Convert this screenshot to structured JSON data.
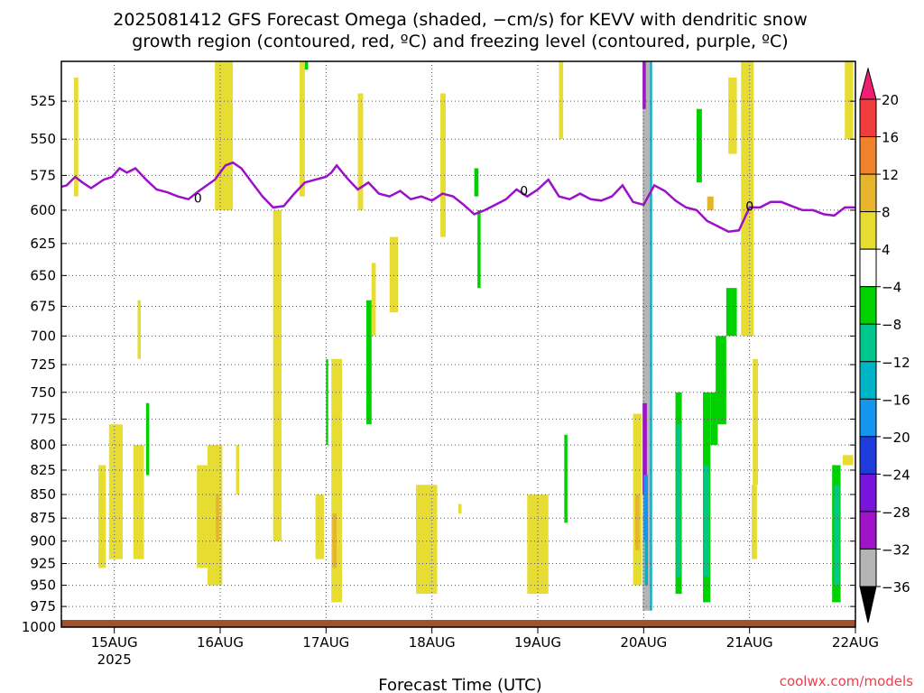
{
  "chart_data": {
    "type": "heatmap",
    "title_lines": [
      "2025081412 GFS Forecast Omega (shaded, −cm/s) for KEVV with dendritic snow",
      "growth region (contoured, red, ºC) and freezing level (contoured, purple, ºC)"
    ],
    "xlabel": "Forecast Time (UTC)",
    "x_ticks": [
      {
        "t": 0,
        "label": "15AUG",
        "sub": "2025"
      },
      {
        "t": 1,
        "label": "16AUG",
        "sub": ""
      },
      {
        "t": 2,
        "label": "17AUG",
        "sub": ""
      },
      {
        "t": 3,
        "label": "18AUG",
        "sub": ""
      },
      {
        "t": 4,
        "label": "19AUG",
        "sub": ""
      },
      {
        "t": 5,
        "label": "20AUG",
        "sub": ""
      },
      {
        "t": 6,
        "label": "21AUG",
        "sub": ""
      },
      {
        "t": 7,
        "label": "22AUG",
        "sub": ""
      }
    ],
    "xlim_days_from_15aug": [
      -0.5,
      7
    ],
    "y_axis": {
      "units": "hPa",
      "reversed": true,
      "range": [
        500,
        1000
      ],
      "ticks": [
        525,
        550,
        575,
        600,
        625,
        650,
        675,
        700,
        725,
        750,
        775,
        800,
        825,
        850,
        875,
        900,
        925,
        950,
        975,
        1000
      ]
    },
    "grid": true,
    "colorbar": {
      "levels": [
        20,
        16,
        12,
        8,
        4,
        -4,
        -8,
        -12,
        -16,
        -20,
        -24,
        -28,
        -32,
        -36
      ],
      "colors": [
        "#f01e6e",
        "#f03c3c",
        "#f0822d",
        "#e6b42d",
        "#e6dc32",
        "#ffffff",
        "#00d200",
        "#00c88c",
        "#00b4c8",
        "#1496f0",
        "#1e3cdc",
        "#7814dc",
        "#a014c8",
        "#b4b4b4",
        "#000000"
      ]
    },
    "freezing_level": {
      "label": "0",
      "x_days": [
        -0.5,
        -0.45,
        -0.37,
        -0.3,
        -0.22,
        -0.1,
        -0.02,
        0.05,
        0.12,
        0.2,
        0.3,
        0.4,
        0.5,
        0.6,
        0.7,
        0.8,
        0.95,
        1.05,
        1.12,
        1.2,
        1.3,
        1.4,
        1.5,
        1.6,
        1.7,
        1.8,
        1.9,
        2.0,
        2.05,
        2.1,
        2.2,
        2.3,
        2.4,
        2.5,
        2.6,
        2.7,
        2.8,
        2.9,
        3.0,
        3.1,
        3.2,
        3.3,
        3.4,
        3.5,
        3.6,
        3.7,
        3.8,
        3.9,
        4.0,
        4.1,
        4.2,
        4.3,
        4.4,
        4.5,
        4.6,
        4.7,
        4.8,
        4.9,
        5.0,
        5.1,
        5.2,
        5.3,
        5.4,
        5.5,
        5.6,
        5.7,
        5.8,
        5.9,
        6.0,
        6.1,
        6.2,
        6.3,
        6.4,
        6.5,
        6.6,
        6.7,
        6.8,
        6.9,
        7.0
      ],
      "p_hpa": [
        583,
        582,
        576,
        580,
        584,
        578,
        576,
        570,
        573,
        570,
        578,
        585,
        587,
        590,
        592,
        586,
        578,
        568,
        566,
        570,
        580,
        590,
        598,
        597,
        588,
        580,
        578,
        576,
        573,
        568,
        577,
        585,
        580,
        588,
        590,
        586,
        592,
        590,
        593,
        588,
        590,
        596,
        603,
        600,
        596,
        592,
        585,
        590,
        585,
        578,
        590,
        592,
        588,
        592,
        593,
        590,
        582,
        594,
        596,
        582,
        586,
        593,
        598,
        600,
        608,
        612,
        616,
        615,
        598,
        598,
        594,
        594,
        597,
        600,
        600,
        603,
        604,
        598,
        598
      ]
    },
    "omega_cells": [
      {
        "t0": -0.38,
        "t1": -0.34,
        "p0": 510,
        "p1": 590,
        "v": 6
      },
      {
        "t0": -0.15,
        "t1": -0.08,
        "p0": 820,
        "p1": 930,
        "v": 6
      },
      {
        "t0": -0.05,
        "t1": 0.08,
        "p0": 780,
        "p1": 920,
        "v": 6
      },
      {
        "t0": 0.18,
        "t1": 0.28,
        "p0": 800,
        "p1": 920,
        "v": 6
      },
      {
        "t0": 0.22,
        "t1": 0.25,
        "p0": 670,
        "p1": 720,
        "v": 6
      },
      {
        "t0": 0.3,
        "t1": 0.33,
        "p0": 760,
        "p1": 830,
        "v": -6
      },
      {
        "t0": 0.78,
        "t1": 0.88,
        "p0": 820,
        "p1": 930,
        "v": 6
      },
      {
        "t0": 0.88,
        "t1": 1.02,
        "p0": 800,
        "p1": 950,
        "v": 6
      },
      {
        "t0": 0.96,
        "t1": 0.99,
        "p0": 850,
        "p1": 900,
        "v": 10
      },
      {
        "t0": 0.95,
        "t1": 1.12,
        "p0": 500,
        "p1": 600,
        "v": 6
      },
      {
        "t0": 1.15,
        "t1": 1.18,
        "p0": 800,
        "p1": 850,
        "v": 6
      },
      {
        "t0": 1.5,
        "t1": 1.58,
        "p0": 600,
        "p1": 900,
        "v": 6
      },
      {
        "t0": 1.75,
        "t1": 1.8,
        "p0": 500,
        "p1": 590,
        "v": 6
      },
      {
        "t0": 1.8,
        "t1": 1.83,
        "p0": 500,
        "p1": 505,
        "v": -6
      },
      {
        "t0": 1.9,
        "t1": 1.98,
        "p0": 850,
        "p1": 920,
        "v": 6
      },
      {
        "t0": 2.0,
        "t1": 2.02,
        "p0": 720,
        "p1": 800,
        "v": -6
      },
      {
        "t0": 2.05,
        "t1": 2.15,
        "p0": 720,
        "p1": 970,
        "v": 6
      },
      {
        "t0": 2.06,
        "t1": 2.1,
        "p0": 870,
        "p1": 930,
        "v": 10
      },
      {
        "t0": 2.3,
        "t1": 2.35,
        "p0": 520,
        "p1": 600,
        "v": 6
      },
      {
        "t0": 2.38,
        "t1": 2.43,
        "p0": 670,
        "p1": 780,
        "v": -6
      },
      {
        "t0": 2.43,
        "t1": 2.47,
        "p0": 640,
        "p1": 700,
        "v": 6
      },
      {
        "t0": 2.6,
        "t1": 2.68,
        "p0": 620,
        "p1": 680,
        "v": 6
      },
      {
        "t0": 2.85,
        "t1": 3.05,
        "p0": 840,
        "p1": 960,
        "v": 6
      },
      {
        "t0": 3.08,
        "t1": 3.13,
        "p0": 520,
        "p1": 620,
        "v": 6
      },
      {
        "t0": 3.25,
        "t1": 3.28,
        "p0": 860,
        "p1": 870,
        "v": 6
      },
      {
        "t0": 3.4,
        "t1": 3.44,
        "p0": 570,
        "p1": 590,
        "v": -6
      },
      {
        "t0": 3.43,
        "t1": 3.46,
        "p0": 600,
        "p1": 660,
        "v": -6
      },
      {
        "t0": 3.9,
        "t1": 4.1,
        "p0": 850,
        "p1": 960,
        "v": 6
      },
      {
        "t0": 4.25,
        "t1": 4.28,
        "p0": 790,
        "p1": 880,
        "v": -6
      },
      {
        "t0": 4.2,
        "t1": 4.24,
        "p0": 500,
        "p1": 550,
        "v": 6
      },
      {
        "t0": 4.9,
        "t1": 4.98,
        "p0": 770,
        "p1": 950,
        "v": 6
      },
      {
        "t0": 4.92,
        "t1": 4.96,
        "p0": 850,
        "p1": 910,
        "v": 10
      },
      {
        "t0": 4.99,
        "t1": 5.03,
        "p0": 870,
        "p1": 950,
        "v": -10
      },
      {
        "t0": 4.99,
        "t1": 5.07,
        "p0": 500,
        "p1": 980,
        "v": -34
      },
      {
        "t0": 4.99,
        "t1": 5.02,
        "p0": 500,
        "p1": 530,
        "v": -30
      },
      {
        "t0": 4.99,
        "t1": 5.03,
        "p0": 760,
        "p1": 850,
        "v": -30
      },
      {
        "t0": 5.0,
        "t1": 5.04,
        "p0": 830,
        "p1": 900,
        "v": -18
      },
      {
        "t0": 5.01,
        "t1": 5.04,
        "p0": 900,
        "p1": 950,
        "v": -14
      },
      {
        "t0": 5.06,
        "t1": 5.08,
        "p0": 500,
        "p1": 980,
        "v": -14
      },
      {
        "t0": 5.3,
        "t1": 5.36,
        "p0": 750,
        "p1": 960,
        "v": -6
      },
      {
        "t0": 5.31,
        "t1": 5.35,
        "p0": 780,
        "p1": 940,
        "v": -10
      },
      {
        "t0": 5.5,
        "t1": 5.55,
        "p0": 530,
        "p1": 580,
        "v": -6
      },
      {
        "t0": 5.56,
        "t1": 5.63,
        "p0": 750,
        "p1": 970,
        "v": -6
      },
      {
        "t0": 5.57,
        "t1": 5.62,
        "p0": 820,
        "p1": 940,
        "v": -10
      },
      {
        "t0": 5.63,
        "t1": 5.7,
        "p0": 750,
        "p1": 800,
        "v": -6
      },
      {
        "t0": 5.68,
        "t1": 5.78,
        "p0": 700,
        "p1": 780,
        "v": -6
      },
      {
        "t0": 5.78,
        "t1": 5.88,
        "p0": 660,
        "p1": 700,
        "v": -6
      },
      {
        "t0": 5.6,
        "t1": 5.66,
        "p0": 590,
        "p1": 600,
        "v": 10
      },
      {
        "t0": 5.8,
        "t1": 5.88,
        "p0": 510,
        "p1": 560,
        "v": 6
      },
      {
        "t0": 5.92,
        "t1": 6.04,
        "p0": 500,
        "p1": 700,
        "v": 6
      },
      {
        "t0": 6.03,
        "t1": 6.08,
        "p0": 720,
        "p1": 840,
        "v": 6
      },
      {
        "t0": 6.02,
        "t1": 6.07,
        "p0": 840,
        "p1": 920,
        "v": 6
      },
      {
        "t0": 6.78,
        "t1": 6.86,
        "p0": 820,
        "p1": 970,
        "v": -6
      },
      {
        "t0": 6.8,
        "t1": 6.85,
        "p0": 840,
        "p1": 950,
        "v": -10
      },
      {
        "t0": 6.9,
        "t1": 6.98,
        "p0": 500,
        "p1": 550,
        "v": 6
      },
      {
        "t0": 6.88,
        "t1": 6.98,
        "p0": 810,
        "p1": 820,
        "v": 6
      }
    ]
  },
  "credit": "coolwx.com/models"
}
